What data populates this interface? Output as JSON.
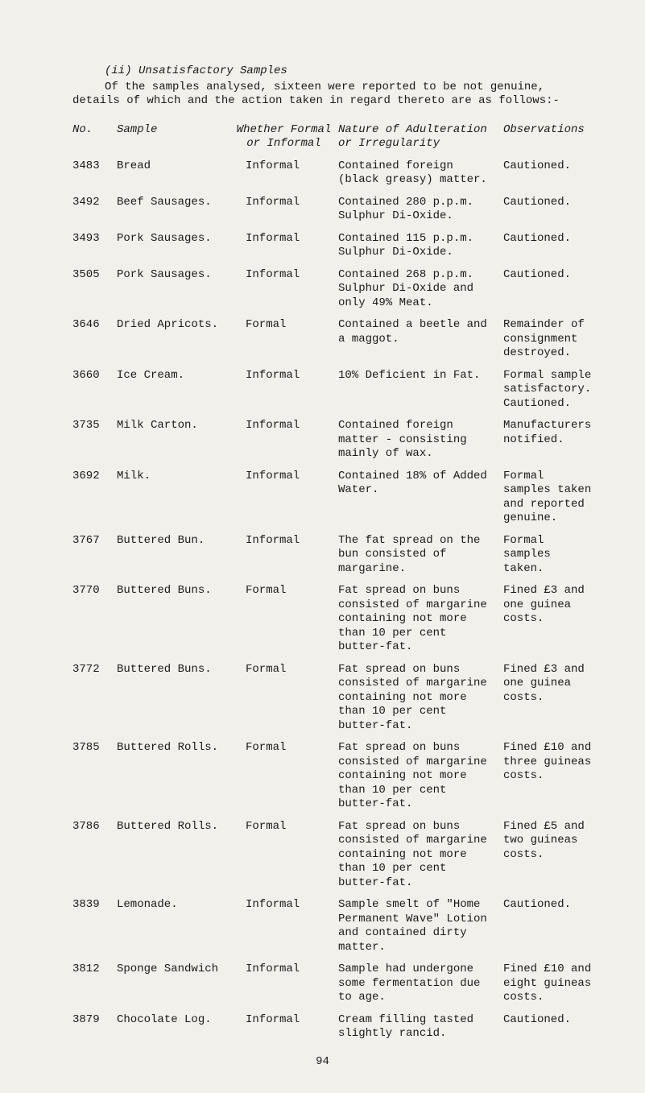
{
  "intro": {
    "heading": "(ii) Unsatisfactory Samples",
    "body_line1": "Of the samples analysed, sixteen were reported to be not genuine,",
    "body_rest": "details of which and the action taken in regard thereto are as follows:-"
  },
  "headers": {
    "no": "No.",
    "sample": "Sample",
    "form_l1": "Whether Formal",
    "form_l2": "or Informal",
    "nature_l1": "Nature of Adulteration",
    "nature_l2": "or Irregularity",
    "obs": "Observations"
  },
  "rows": [
    {
      "no": "3483",
      "sample": "Bread",
      "form": "Informal",
      "nature": "Contained foreign (black greasy) matter.",
      "obs": "Cautioned."
    },
    {
      "no": "3492",
      "sample": "Beef Sausages.",
      "form": "Informal",
      "nature": "Contained 280 p.p.m. Sulphur Di-Oxide.",
      "obs": "Cautioned."
    },
    {
      "no": "3493",
      "sample": "Pork Sausages.",
      "form": "Informal",
      "nature": "Contained 115 p.p.m. Sulphur Di-Oxide.",
      "obs": "Cautioned."
    },
    {
      "no": "3505",
      "sample": "Pork Sausages.",
      "form": "Informal",
      "nature": "Contained 268 p.p.m. Sulphur Di-Oxide and only 49% Meat.",
      "obs": "Cautioned."
    },
    {
      "no": "3646",
      "sample": "Dried Apricots.",
      "form": "Formal",
      "nature": "Contained a beetle and a maggot.",
      "obs": "Remainder of consignment destroyed."
    },
    {
      "no": "3660",
      "sample": "Ice Cream.",
      "form": "Informal",
      "nature": "10% Deficient in Fat.",
      "obs": "Formal sample satisfactory. Cautioned."
    },
    {
      "no": "3735",
      "sample": "Milk Carton.",
      "form": "Informal",
      "nature": "Contained foreign matter - consisting mainly of wax.",
      "obs": "Manufacturers notified."
    },
    {
      "no": "3692",
      "sample": "Milk.",
      "form": "Informal",
      "nature": "Contained 18% of Added Water.",
      "obs": "Formal samples taken and reported genuine."
    },
    {
      "no": "3767",
      "sample": "Buttered Bun.",
      "form": "Informal",
      "nature": "The fat spread on the bun consisted of margarine.",
      "obs": "Formal samples taken."
    },
    {
      "no": "3770",
      "sample": "Buttered Buns.",
      "form": "Formal",
      "nature": "Fat spread on buns consisted of margarine containing not more than 10 per cent butter-fat.",
      "obs": "Fined £3 and one guinea costs."
    },
    {
      "no": "3772",
      "sample": "Buttered Buns.",
      "form": "Formal",
      "nature": "Fat spread on buns consisted of margarine containing not more than 10 per cent butter-fat.",
      "obs": "Fined £3 and one guinea costs."
    },
    {
      "no": "3785",
      "sample": "Buttered Rolls.",
      "form": "Formal",
      "nature": "Fat spread on buns consisted of margarine containing not more than 10 per cent butter-fat.",
      "obs": "Fined £10 and three guineas costs."
    },
    {
      "no": "3786",
      "sample": "Buttered Rolls.",
      "form": "Formal",
      "nature": "Fat spread on buns consisted of margarine containing not more than 10 per cent butter-fat.",
      "obs": "Fined £5 and two guineas costs."
    },
    {
      "no": "3839",
      "sample": "Lemonade.",
      "form": "Informal",
      "nature": "Sample smelt of \"Home Permanent Wave\" Lotion and contained dirty matter.",
      "obs": "Cautioned."
    },
    {
      "no": "3812",
      "sample": "Sponge Sandwich",
      "form": "Informal",
      "nature": "Sample had undergone some fermentation due to age.",
      "obs": "Fined £10 and eight guineas costs."
    },
    {
      "no": "3879",
      "sample": "Chocolate Log.",
      "form": "Informal",
      "nature": "Cream filling tasted slightly rancid.",
      "obs": "Cautioned."
    }
  ],
  "page_number": "94"
}
